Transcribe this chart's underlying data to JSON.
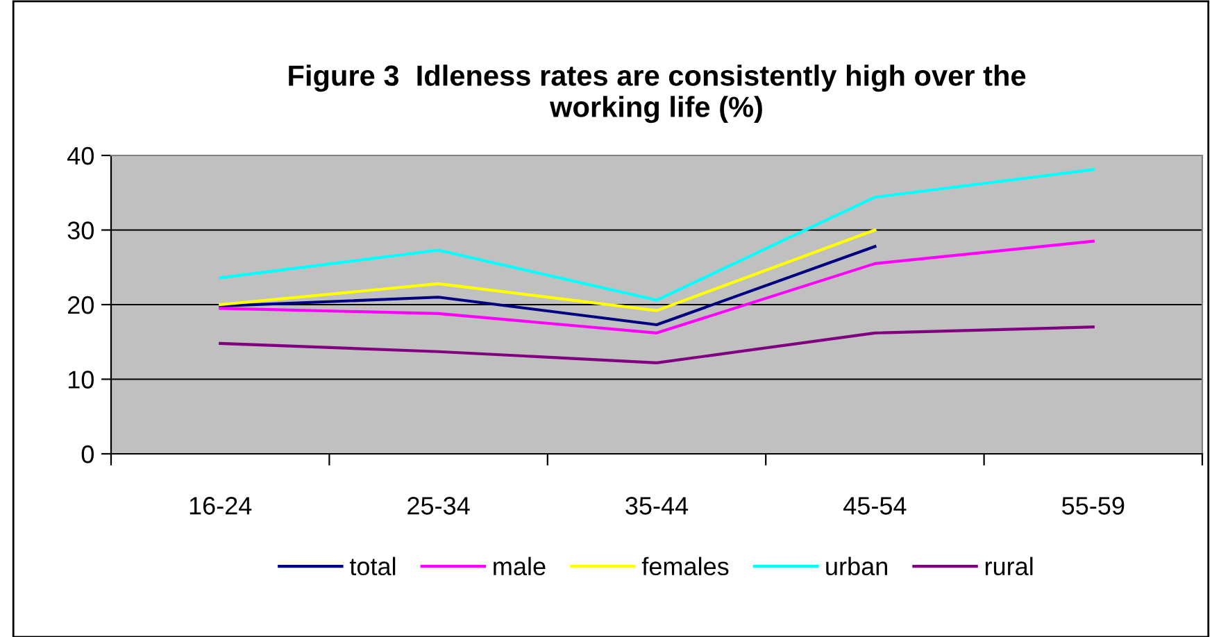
{
  "chart_data": {
    "type": "line",
    "title": "Figure 3  Idleness rates are consistently high over the\nworking life (%)",
    "categories": [
      "16-24",
      "25-34",
      "35-44",
      "45-54",
      "55-59"
    ],
    "series": [
      {
        "name": "total",
        "color": "#000080",
        "values": [
          19.8,
          21.0,
          17.3,
          27.8,
          null
        ]
      },
      {
        "name": "male",
        "color": "#ff00ff",
        "values": [
          19.5,
          18.8,
          16.2,
          25.5,
          28.5
        ]
      },
      {
        "name": "females",
        "color": "#ffff00",
        "values": [
          20.0,
          22.8,
          19.2,
          30.0,
          null
        ]
      },
      {
        "name": "urban",
        "color": "#00ffff",
        "values": [
          23.6,
          27.3,
          20.6,
          34.4,
          38.1
        ]
      },
      {
        "name": "rural",
        "color": "#800080",
        "values": [
          14.8,
          13.7,
          12.2,
          16.2,
          17.0
        ]
      }
    ],
    "ylim": [
      0,
      40
    ],
    "yticks": [
      0,
      10,
      20,
      30,
      40
    ],
    "grid": "y",
    "legend": "bottom",
    "marker": "none",
    "line_style": "solid"
  }
}
